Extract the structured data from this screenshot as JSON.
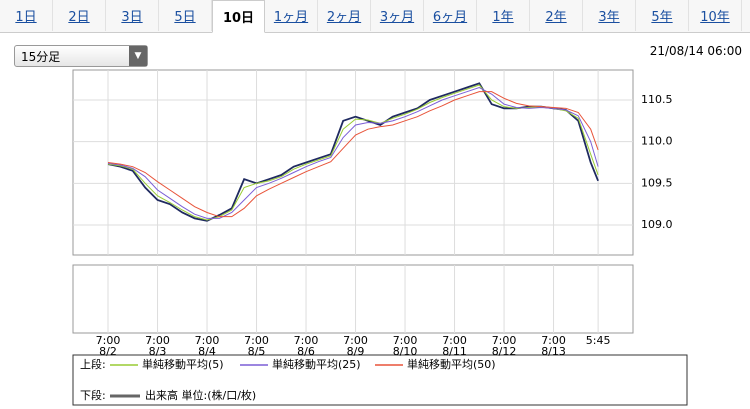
{
  "tabs": [
    "1日",
    "2日",
    "3日",
    "5日",
    "10日",
    "1ヶ月",
    "2ヶ月",
    "3ヶ月",
    "6ヶ月",
    "1年",
    "2年",
    "3年",
    "5年",
    "10年"
  ],
  "selected_tab": 4,
  "interval": "15分足",
  "timestamp": "21/08/14 06:00",
  "chart_data": {
    "type": "line",
    "x": [
      0,
      1,
      2,
      3,
      4,
      5,
      6,
      7,
      8,
      9,
      10,
      11,
      12,
      13,
      14,
      15,
      16,
      17,
      18,
      19,
      20,
      21,
      22,
      23,
      24,
      25,
      26,
      27,
      28,
      29,
      30,
      31,
      32,
      33,
      34,
      35,
      36,
      37,
      38,
      39,
      39.6
    ],
    "price": {
      "color": "#1f2a60",
      "values": [
        109.73,
        109.7,
        109.65,
        109.45,
        109.3,
        109.25,
        109.15,
        109.08,
        109.05,
        109.12,
        109.2,
        109.55,
        109.5,
        109.55,
        109.6,
        109.7,
        109.75,
        109.8,
        109.85,
        110.25,
        110.3,
        110.25,
        110.2,
        110.3,
        110.35,
        110.4,
        110.5,
        110.55,
        110.6,
        110.65,
        110.7,
        110.45,
        110.4,
        110.4,
        110.42,
        110.42,
        110.4,
        110.38,
        110.25,
        109.75,
        109.53
      ]
    },
    "series": [
      {
        "name": "単純移動平均(5)",
        "color": "#99cc33",
        "values": [
          109.73,
          109.71,
          109.67,
          109.5,
          109.35,
          109.27,
          109.18,
          109.1,
          109.06,
          109.1,
          109.18,
          109.45,
          109.5,
          109.53,
          109.58,
          109.67,
          109.73,
          109.78,
          109.83,
          110.15,
          110.27,
          110.26,
          110.22,
          110.28,
          110.33,
          110.39,
          110.47,
          110.53,
          110.58,
          110.63,
          110.68,
          110.5,
          110.42,
          110.4,
          110.41,
          110.42,
          110.4,
          110.37,
          110.28,
          109.85,
          109.6
        ]
      },
      {
        "name": "単純移動平均(25)",
        "color": "#7b5fd6",
        "values": [
          109.74,
          109.72,
          109.68,
          109.58,
          109.42,
          109.32,
          109.22,
          109.13,
          109.08,
          109.08,
          109.15,
          109.3,
          109.45,
          109.5,
          109.56,
          109.63,
          109.7,
          109.76,
          109.81,
          110.05,
          110.2,
          110.23,
          110.22,
          110.25,
          110.3,
          110.36,
          110.43,
          110.5,
          110.55,
          110.6,
          110.65,
          110.57,
          110.45,
          110.41,
          110.4,
          110.41,
          110.4,
          110.38,
          110.31,
          110.0,
          109.7
        ]
      },
      {
        "name": "単純移動平均(50)",
        "color": "#e8543a",
        "values": [
          109.75,
          109.73,
          109.7,
          109.63,
          109.52,
          109.42,
          109.32,
          109.22,
          109.15,
          109.1,
          109.1,
          109.2,
          109.35,
          109.43,
          109.5,
          109.57,
          109.64,
          109.7,
          109.76,
          109.92,
          110.08,
          110.15,
          110.18,
          110.2,
          110.25,
          110.3,
          110.37,
          110.43,
          110.5,
          110.55,
          110.6,
          110.6,
          110.52,
          110.46,
          110.43,
          110.42,
          110.41,
          110.4,
          110.35,
          110.15,
          109.9
        ]
      }
    ],
    "xlim": [
      -2.83,
      42.42
    ],
    "xticks": [
      {
        "value": 0,
        "label": "7:00",
        "date": "8/2"
      },
      {
        "value": 4,
        "label": "7:00",
        "date": "8/3"
      },
      {
        "value": 8,
        "label": "7:00",
        "date": "8/4"
      },
      {
        "value": 12,
        "label": "7:00",
        "date": "8/5"
      },
      {
        "value": 16,
        "label": "7:00",
        "date": "8/6"
      },
      {
        "value": 20,
        "label": "7:00",
        "date": "8/9"
      },
      {
        "value": 24,
        "label": "7:00",
        "date": "8/10"
      },
      {
        "value": 28,
        "label": "7:00",
        "date": "8/11"
      },
      {
        "value": 32,
        "label": "7:00",
        "date": "8/12"
      },
      {
        "value": 36,
        "label": "7:00",
        "date": "8/13"
      },
      {
        "value": 39.6,
        "label": "5:45"
      }
    ],
    "ylim": [
      108.64,
      110.86
    ],
    "yticks": [
      {
        "value": 109.0,
        "label": "109.0"
      },
      109.5,
      {
        "value": 110.0,
        "label": "110.0"
      },
      110.5
    ],
    "grid": true,
    "legend_upper": "上段:",
    "legend_lower": "下段:",
    "volume_legend": {
      "name": "出来高 単位:(株/口/枚)",
      "color": "#666666"
    }
  }
}
